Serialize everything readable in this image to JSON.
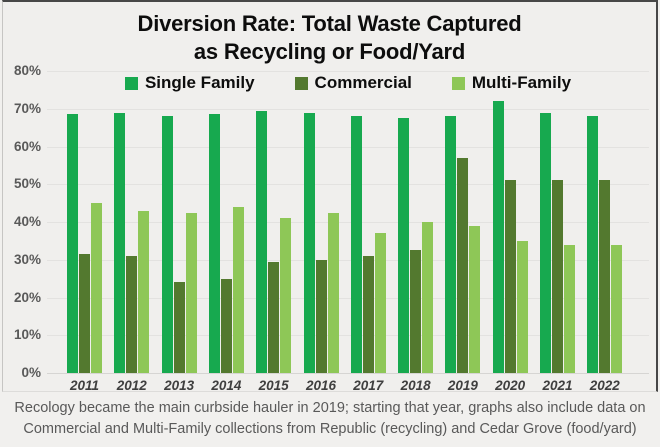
{
  "title": {
    "line1": "Diversion Rate: Total Waste Captured",
    "line2": "as Recycling or Food/Yard"
  },
  "caption": {
    "line1": "Recology became the main curbside hauler in 2019; starting that year, graphs also include data on",
    "line2": "Commercial and Multi-Family collections from Republic (recycling) and Cedar Grove (food/yard)"
  },
  "chart_data": {
    "type": "bar",
    "title": "Diversion Rate: Total Waste Captured as Recycling or Food/Yard",
    "categories": [
      "2011",
      "2012",
      "2013",
      "2014",
      "2015",
      "2016",
      "2017",
      "2018",
      "2019",
      "2020",
      "2021",
      "2022"
    ],
    "series": [
      {
        "name": "Single Family",
        "color": "#17a94f",
        "values": [
          68.5,
          69,
          68,
          68.5,
          69.5,
          69,
          68,
          67.5,
          68,
          72,
          69,
          68
        ]
      },
      {
        "name": "Commercial",
        "color": "#53792f",
        "values": [
          31.5,
          31,
          24,
          25,
          29.5,
          30,
          31,
          32.5,
          57,
          51,
          51,
          51
        ]
      },
      {
        "name": "Multi-Family",
        "color": "#8ec757",
        "values": [
          45,
          43,
          42.5,
          44,
          41,
          42.5,
          37,
          40,
          39,
          35,
          34,
          34
        ]
      }
    ],
    "xlabel": "",
    "ylabel": "",
    "ylim": [
      0,
      80
    ],
    "ytick_step": 10,
    "ytick_labels": [
      "0%",
      "10%",
      "20%",
      "30%",
      "40%",
      "50%",
      "60%",
      "70%",
      "80%"
    ],
    "unit": "%",
    "grid": true,
    "legend_position": "top-center"
  }
}
